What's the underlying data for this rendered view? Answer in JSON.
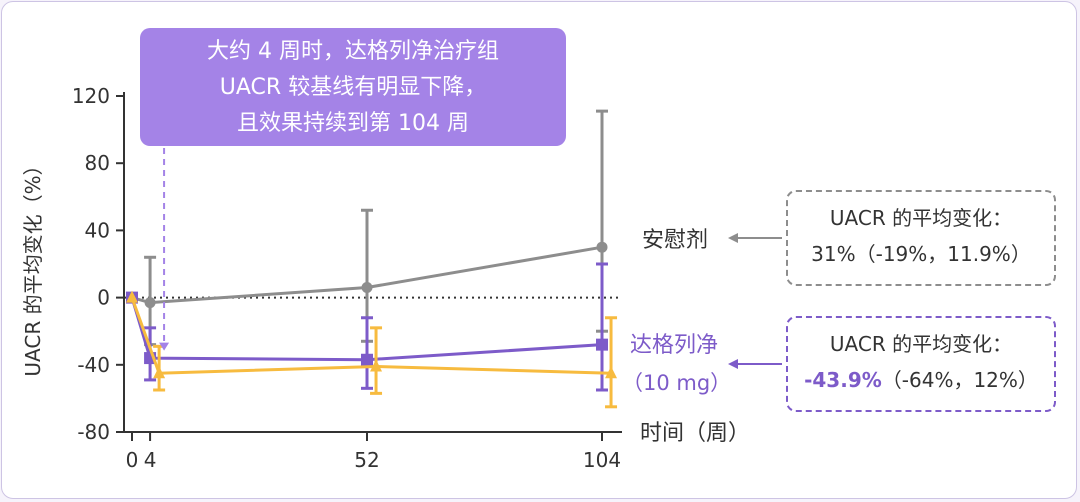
{
  "callout": {
    "line1": "大约 4 周时，达格列净治疗组",
    "line2": "UACR 较基线有明显下降，",
    "line3": "且效果持续到第 104 周"
  },
  "placebo_box": {
    "line1": "UACR 的平均变化：",
    "line2": "31%（-19%，11.9%）"
  },
  "drug_box": {
    "line1": "UACR 的平均变化：",
    "line2_highlight": "-43.9%",
    "line2_rest": "（-64%，12%）"
  },
  "labels": {
    "placebo": "安慰剂",
    "drug_line1": "达格列净",
    "drug_line2": "（10 mg）"
  },
  "colors": {
    "placebo": "#8d8d8d",
    "drug": "#7d5bc9",
    "third": "#f7bb3f",
    "callout_bg": "#a483e7"
  },
  "chart_data": {
    "type": "line",
    "xlabel": "时间（周）",
    "ylabel": "UACR 的平均变化（%）",
    "xticks": [
      "0",
      "4",
      "52",
      "104"
    ],
    "yticks": [
      "120",
      "80",
      "40",
      "0",
      "-40",
      "-80"
    ],
    "ylim": [
      -80,
      120
    ],
    "xlim": [
      0,
      104
    ],
    "reference_line": 0,
    "series": [
      {
        "name": "安慰剂",
        "color": "#8d8d8d",
        "marker": "circle",
        "x": [
          0,
          4,
          52,
          104
        ],
        "y": [
          0,
          -3,
          6,
          30
        ],
        "err_low": [
          0,
          -28,
          -26,
          -20
        ],
        "err_high": [
          0,
          24,
          52,
          111
        ]
      },
      {
        "name": "达格列净（10 mg）",
        "color": "#7d5bc9",
        "marker": "square",
        "x": [
          0,
          4,
          52,
          104
        ],
        "y": [
          0,
          -36,
          -37,
          -28
        ],
        "err_low": [
          0,
          -49,
          -54,
          -55
        ],
        "err_high": [
          0,
          -18,
          -12,
          20
        ]
      },
      {
        "name": "",
        "color": "#f7bb3f",
        "marker": "triangle",
        "x": [
          0,
          6,
          54,
          106
        ],
        "y": [
          0,
          -45,
          -41,
          -45
        ],
        "err_low": [
          0,
          -55,
          -57,
          -65
        ],
        "err_high": [
          0,
          -29,
          -18,
          -12
        ]
      }
    ]
  }
}
